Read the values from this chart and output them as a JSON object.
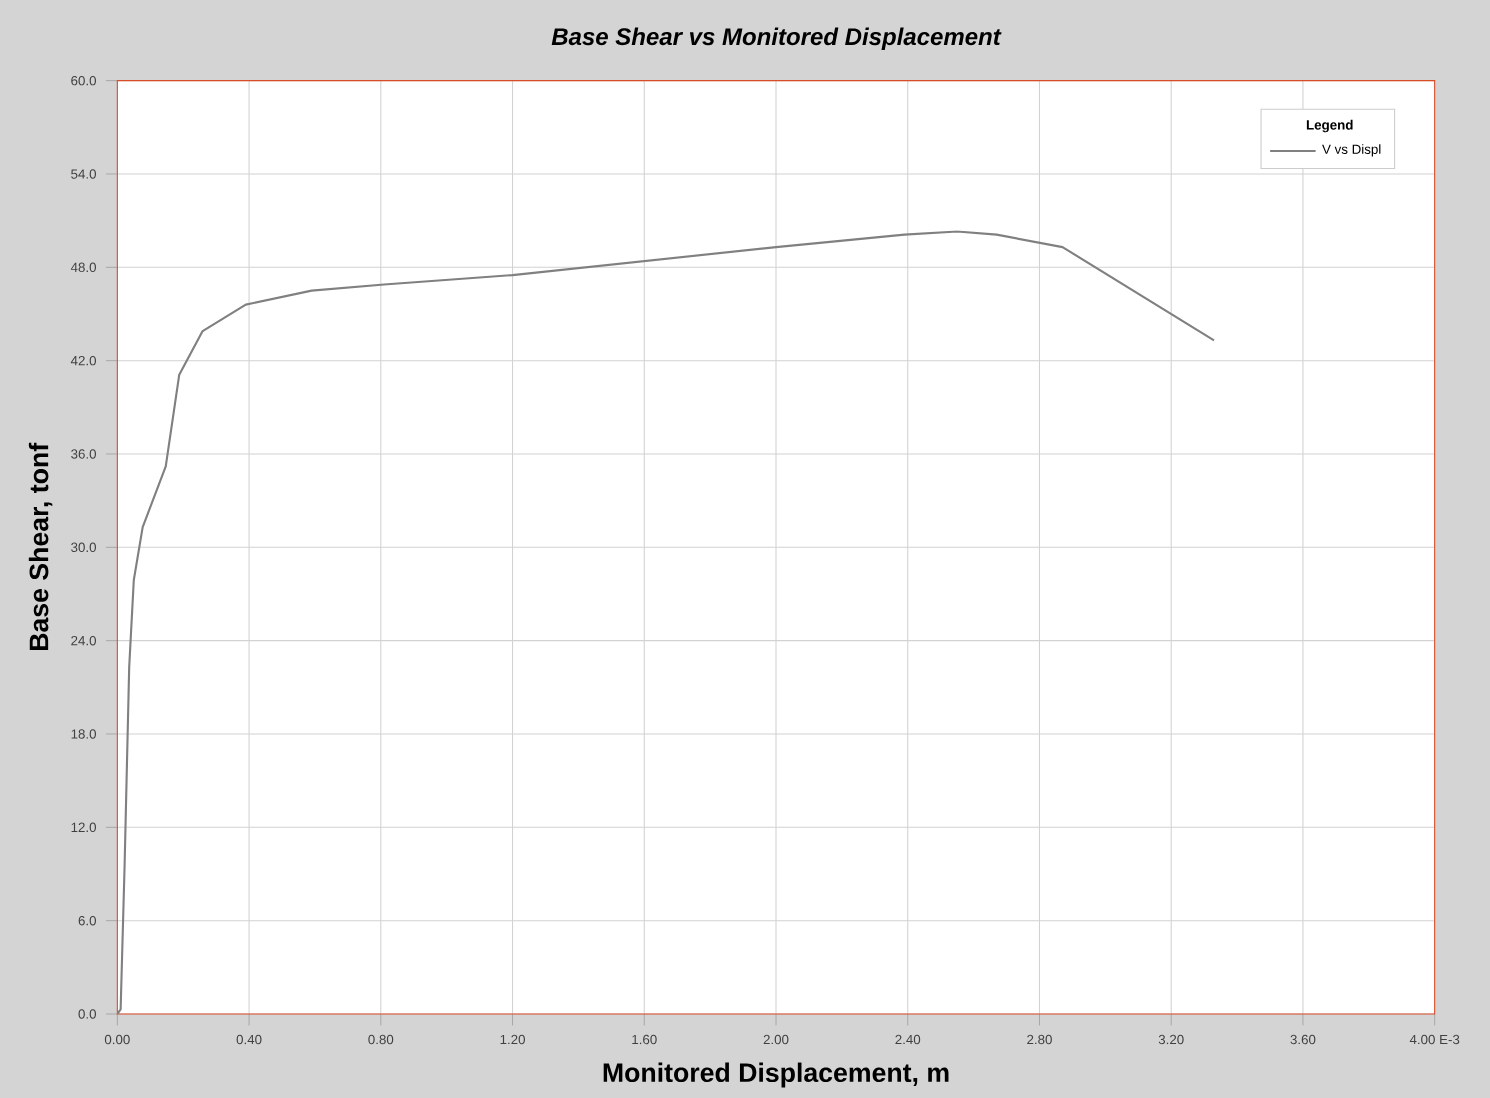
{
  "chart_data": {
    "type": "line",
    "title": "Base Shear vs Monitored Displacement",
    "xlabel": "Monitored Displacement, m",
    "ylabel": "Base Shear, tonf",
    "legend_title": "Legend",
    "series": [
      {
        "name": "V vs Displ",
        "color": "#808080",
        "x": [
          0.0,
          0.01,
          0.022,
          0.036,
          0.05,
          0.077,
          0.147,
          0.188,
          0.259,
          0.39,
          0.59,
          0.81,
          1.2,
          1.6,
          2.0,
          2.39,
          2.55,
          2.67,
          2.87,
          3.33
        ],
        "values": [
          0.0,
          0.3,
          9.5,
          22.3,
          27.9,
          31.3,
          35.2,
          41.1,
          43.9,
          45.6,
          46.5,
          46.9,
          47.5,
          48.4,
          49.3,
          50.1,
          50.3,
          50.1,
          49.3,
          43.3
        ]
      }
    ],
    "xlim": [
      0,
      4
    ],
    "ylim": [
      0,
      60
    ],
    "xticks": [
      {
        "value": 0,
        "label": "0.00"
      },
      {
        "value": 0.4,
        "label": "0.40"
      },
      {
        "value": 0.8,
        "label": "0.80"
      },
      {
        "value": 1.2,
        "label": "1.20"
      },
      {
        "value": 1.6,
        "label": "1.60"
      },
      {
        "value": 2.0,
        "label": "2.00"
      },
      {
        "value": 2.4,
        "label": "2.40"
      },
      {
        "value": 2.8,
        "label": "2.80"
      },
      {
        "value": 3.2,
        "label": "3.20"
      },
      {
        "value": 3.6,
        "label": "3.60"
      },
      {
        "value": 4.0,
        "label": "4.00 E-3"
      }
    ],
    "yticks": [
      {
        "value": 0,
        "label": "0.0"
      },
      {
        "value": 6,
        "label": "6.0"
      },
      {
        "value": 12,
        "label": "12.0"
      },
      {
        "value": 18,
        "label": "18.0"
      },
      {
        "value": 24,
        "label": "24.0"
      },
      {
        "value": 30,
        "label": "30.0"
      },
      {
        "value": 36,
        "label": "36.0"
      },
      {
        "value": 42,
        "label": "42.0"
      },
      {
        "value": 48,
        "label": "48.0"
      },
      {
        "value": 54,
        "label": "54.0"
      },
      {
        "value": 60,
        "label": "60.0"
      }
    ],
    "grid": true,
    "legend": "top right",
    "marker": "none",
    "line_style": "solid"
  }
}
